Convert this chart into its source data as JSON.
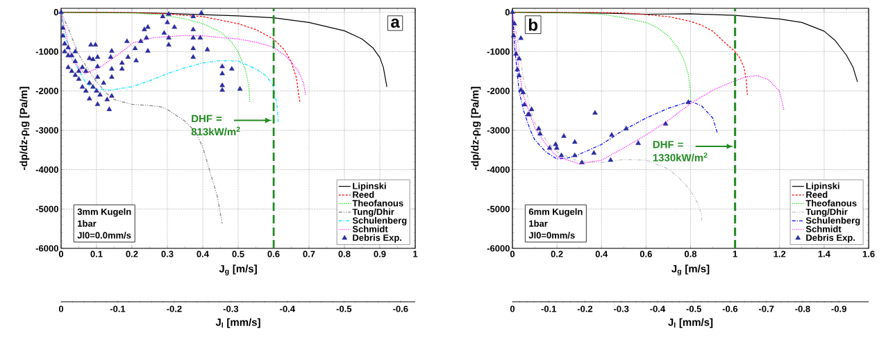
{
  "chart_data": [
    {
      "type": "line",
      "xlabel": "J$_{g}$ [m/s]",
      "ylabel": "-dp/dz-ρ$_{l}$g [Pa/m]",
      "x2label": "J$_{l}$ [mm/s]",
      "xlim": [
        0,
        1
      ],
      "ylim": [
        -6000,
        100
      ],
      "xticks": [
        0,
        0.1,
        0.2,
        0.3,
        0.4,
        0.5,
        0.6,
        0.7,
        0.8,
        0.9,
        1
      ],
      "yticks": [
        -6000,
        -5000,
        -4000,
        -3000,
        -2000,
        -1000,
        0
      ],
      "x2lim": [
        0,
        -0.626
      ],
      "x2ticks": [
        0,
        -0.1,
        -0.2,
        -0.3,
        -0.4,
        -0.5,
        -0.6
      ],
      "grid": true,
      "legend": "bottom right",
      "series": [
        {
          "name": "Lipinski",
          "type": "line",
          "color": "#000000",
          "line_style": "solid",
          "x": [
            0,
            0.2,
            0.3,
            0.4,
            0.5,
            0.6,
            0.7,
            0.8,
            0.85,
            0.88,
            0.9,
            0.91,
            0.92
          ],
          "values": [
            0,
            -10,
            -30,
            -60,
            -90,
            -140,
            -260,
            -470,
            -680,
            -900,
            -1150,
            -1400,
            -1900
          ]
        },
        {
          "name": "Reed",
          "type": "line",
          "color": "#ff0000",
          "line_style": "dashed",
          "x": [
            0,
            0.2,
            0.3,
            0.35,
            0.4,
            0.5,
            0.55,
            0.6,
            0.63,
            0.65,
            0.665,
            0.67,
            0.675
          ],
          "values": [
            0,
            -10,
            -40,
            -80,
            -110,
            -290,
            -440,
            -680,
            -950,
            -1260,
            -1680,
            -2040,
            -2310
          ]
        },
        {
          "name": "Theofanous",
          "type": "line",
          "color": "#00dd00",
          "line_style": "dotted",
          "x": [
            0,
            0.2,
            0.28,
            0.32,
            0.35,
            0.4,
            0.45,
            0.48,
            0.5,
            0.52,
            0.53,
            0.533
          ],
          "values": [
            0,
            -20,
            -60,
            -120,
            -170,
            -290,
            -500,
            -740,
            -1010,
            -1440,
            -1860,
            -2280
          ]
        },
        {
          "name": "Tung/Dhir",
          "type": "line",
          "color": "#808080",
          "line_style": "dashdotdot",
          "x": [
            0,
            0.02,
            0.05,
            0.08,
            0.1,
            0.13,
            0.15,
            0.2,
            0.25,
            0.28,
            0.3,
            0.35,
            0.38,
            0.4,
            0.42,
            0.44,
            0.45,
            0.455
          ],
          "values": [
            0,
            -410,
            -1080,
            -1500,
            -1770,
            -2070,
            -2220,
            -2340,
            -2370,
            -2400,
            -2470,
            -2770,
            -3040,
            -3430,
            -4040,
            -4640,
            -5120,
            -5370
          ]
        },
        {
          "name": "Schulenberg",
          "type": "line",
          "color": "#00e5ff",
          "line_style": "dashdot",
          "x": [
            0,
            0.01,
            0.04,
            0.07,
            0.1,
            0.14,
            0.2,
            0.25,
            0.3,
            0.35,
            0.4,
            0.45,
            0.5,
            0.55,
            0.58,
            0.6,
            0.603,
            0.61,
            0.613
          ],
          "values": [
            0,
            -600,
            -1300,
            -1800,
            -1950,
            -1980,
            -1890,
            -1740,
            -1560,
            -1410,
            -1290,
            -1230,
            -1240,
            -1440,
            -1620,
            -1890,
            -2100,
            -2340,
            -2800
          ]
        },
        {
          "name": "Schmidt",
          "type": "line",
          "color": "#ff00ff",
          "line_style": "dotted",
          "x": [
            0,
            0.03,
            0.067,
            0.113,
            0.16,
            0.205,
            0.258,
            0.3,
            0.35,
            0.4,
            0.45,
            0.5,
            0.55,
            0.6,
            0.63,
            0.65,
            0.67,
            0.685,
            0.69
          ],
          "values": [
            0,
            -1200,
            -1560,
            -1380,
            -1080,
            -770,
            -650,
            -620,
            -590,
            -600,
            -640,
            -680,
            -760,
            -890,
            -1080,
            -1260,
            -1500,
            -1800,
            -2100
          ]
        },
        {
          "name": "Debris Exp.",
          "type": "scatter",
          "color": "#2b2ba8",
          "marker": "triangle",
          "x": [
            0,
            0.005,
            0.005,
            0.01,
            0.01,
            0.02,
            0.02,
            0.03,
            0.04,
            0.02,
            0.03,
            0.04,
            0.05,
            0.06,
            0.05,
            0.06,
            0.07,
            0.08,
            0.09,
            0.1,
            0.11,
            0.12,
            0.08,
            0.09,
            0.07,
            0.04,
            0.084,
            0.097,
            0.08,
            0.103,
            0.103,
            0.103,
            0.103,
            0.136,
            0.13,
            0.143,
            0.143,
            0.14,
            0.143,
            0.143,
            0.172,
            0.172,
            0.186,
            0.189,
            0.209,
            0.212,
            0.225,
            0.235,
            0.245,
            0.241,
            0.245,
            0.287,
            0.304,
            0.3,
            0.291,
            0.304,
            0.304,
            0.32,
            0.373,
            0.396,
            0.373,
            0.373,
            0.393,
            0.373,
            0.373,
            0.413,
            0.455,
            0.455,
            0.482,
            0.455,
            0.455,
            0.505
          ],
          "values": [
            0,
            -400,
            -600,
            -800,
            -1000,
            -1100,
            -900,
            -1100,
            -1000,
            -1400,
            -1500,
            -1600,
            -1500,
            -1400,
            -1700,
            -1900,
            -2000,
            -1800,
            -1900,
            -2000,
            -2100,
            -1800,
            -2200,
            -1200,
            -1500,
            -1250,
            -830,
            -830,
            -1170,
            -1140,
            -1380,
            -1650,
            -2340,
            -2470,
            -2220,
            -2130,
            -985,
            -1140,
            -1440,
            -1650,
            -1440,
            -1290,
            -740,
            -1140,
            -920,
            -1230,
            -740,
            -440,
            -380,
            -650,
            -985,
            -110,
            -50,
            -260,
            -530,
            -650,
            -830,
            -380,
            -110,
            -20,
            -440,
            -650,
            -650,
            -920,
            -1140,
            -950,
            -1380,
            -1560,
            -1440,
            -1860,
            -1980,
            -1950
          ]
        }
      ],
      "ref_lines": [
        {
          "axis": "x",
          "value": 0.6,
          "color": "#228b22",
          "line_style": "dashed"
        }
      ],
      "annotations": [
        "a",
        "DHF = 813kW/m$^{2}$",
        "3mm Kugeln",
        "1bar",
        "Jl0=0.0mm/s"
      ]
    },
    {
      "type": "line",
      "xlabel": "J$_{g}$ [m/s]",
      "ylabel": "-dp/dz-ρ$_{l}$g [Pa/m]",
      "x2label": "J$_{l}$ [mm/s]",
      "xlim": [
        0,
        1.6
      ],
      "ylim": [
        -6000,
        100
      ],
      "xticks": [
        0,
        0.2,
        0.4,
        0.6,
        0.8,
        1,
        1.2,
        1.4,
        1.6
      ],
      "yticks": [
        -6000,
        -5000,
        -4000,
        -3000,
        -2000,
        -1000,
        0
      ],
      "x2lim": [
        0,
        -0.982
      ],
      "x2ticks": [
        0,
        -0.1,
        -0.2,
        -0.3,
        -0.4,
        -0.5,
        -0.6,
        -0.7,
        -0.8,
        -0.9
      ],
      "grid": true,
      "legend": "bottom right",
      "series": [
        {
          "name": "Lipinski",
          "type": "line",
          "color": "#000000",
          "line_style": "solid",
          "x": [
            0,
            0.4,
            0.6,
            0.8,
            1.0,
            1.2,
            1.3,
            1.4,
            1.45,
            1.5,
            1.53,
            1.55
          ],
          "values": [
            0,
            -20,
            -50,
            -40,
            -80,
            -170,
            -260,
            -480,
            -720,
            -1090,
            -1400,
            -1770
          ]
        },
        {
          "name": "Reed",
          "type": "line",
          "color": "#ff0000",
          "line_style": "dashed",
          "x": [
            0,
            0.4,
            0.5,
            0.6,
            0.7,
            0.8,
            0.85,
            0.9,
            0.95,
            1.0,
            1.02,
            1.04,
            1.05,
            1.055
          ],
          "values": [
            0,
            -10,
            -20,
            -60,
            -110,
            -230,
            -330,
            -480,
            -750,
            -1000,
            -1150,
            -1400,
            -1700,
            -2100
          ]
        },
        {
          "name": "Theofanous",
          "type": "line",
          "color": "#00dd00",
          "line_style": "dotted",
          "x": [
            0,
            0.3,
            0.4,
            0.5,
            0.6,
            0.65,
            0.7,
            0.74,
            0.77,
            0.79,
            0.8,
            0.8
          ],
          "values": [
            0,
            -20,
            -50,
            -140,
            -260,
            -390,
            -600,
            -880,
            -1210,
            -1580,
            -2010,
            -2260
          ]
        },
        {
          "name": "Tung/Dhir",
          "type": "line",
          "color": "#c0c0c0",
          "line_style": "dashdotdot",
          "x": [
            0,
            0.02,
            0.05,
            0.08,
            0.1,
            0.15,
            0.2,
            0.3,
            0.4,
            0.5,
            0.6,
            0.7,
            0.75,
            0.8,
            0.83,
            0.85,
            0.85
          ],
          "values": [
            0,
            -600,
            -1700,
            -2440,
            -2810,
            -3240,
            -3550,
            -3790,
            -3820,
            -3740,
            -3760,
            -3980,
            -4220,
            -4530,
            -4830,
            -5140,
            -5290
          ]
        },
        {
          "name": "Schulenberg",
          "type": "line",
          "color": "#0000ff",
          "line_style": "dashdot",
          "x": [
            0,
            0.01,
            0.03,
            0.05,
            0.08,
            0.1,
            0.15,
            0.2,
            0.25,
            0.3,
            0.4,
            0.5,
            0.6,
            0.7,
            0.8,
            0.85,
            0.9,
            0.92
          ],
          "values": [
            0,
            -900,
            -2010,
            -2500,
            -2990,
            -3240,
            -3550,
            -3730,
            -3700,
            -3610,
            -3360,
            -2990,
            -2690,
            -2440,
            -2260,
            -2380,
            -2690,
            -3060
          ]
        },
        {
          "name": "Schmidt",
          "type": "line",
          "color": "#ff00ff",
          "line_style": "dotted",
          "x": [
            0,
            0.03,
            0.05,
            0.1,
            0.15,
            0.2,
            0.3,
            0.4,
            0.5,
            0.6,
            0.7,
            0.8,
            0.9,
            1.0,
            1.05,
            1.1,
            1.15,
            1.2,
            1.22
          ],
          "values": [
            0,
            -1520,
            -2130,
            -2930,
            -3360,
            -3670,
            -3850,
            -3760,
            -3450,
            -3120,
            -2750,
            -2320,
            -1980,
            -1740,
            -1640,
            -1610,
            -1710,
            -2010,
            -2500
          ]
        },
        {
          "name": "Debris Exp.",
          "type": "scatter",
          "color": "#2b2ba8",
          "marker": "triangle",
          "x": [
            0,
            0.009,
            0.005,
            0.038,
            0.016,
            0.03,
            0.022,
            0.03,
            0.038,
            0.048,
            0.054,
            0.07,
            0.086,
            0.075,
            0.118,
            0.124,
            0.167,
            0.194,
            0.199,
            0.231,
            0.22,
            0.28,
            0.28,
            0.312,
            0.366,
            0.371,
            0.446,
            0.441,
            0.511,
            0.565,
            0.688,
            0.79
          ],
          "values": [
            0,
            -290,
            -600,
            -660,
            -1060,
            -1180,
            -1460,
            -1610,
            -1980,
            -2040,
            -2350,
            -2600,
            -2470,
            -2600,
            -2960,
            -3090,
            -3450,
            -3360,
            -3450,
            -3150,
            -3640,
            -3300,
            -3640,
            -3820,
            -3580,
            -2560,
            -3120,
            -3760,
            -2960,
            -3330,
            -2840,
            -2290
          ]
        }
      ],
      "ref_lines": [
        {
          "axis": "x",
          "value": 1.0,
          "color": "#228b22",
          "line_style": "dashed"
        }
      ],
      "annotations": [
        "b",
        "DHF = 1330kW/m$^{2}$",
        "6mm Kugeln",
        "1bar",
        "Jl0=0mm/s"
      ]
    }
  ]
}
